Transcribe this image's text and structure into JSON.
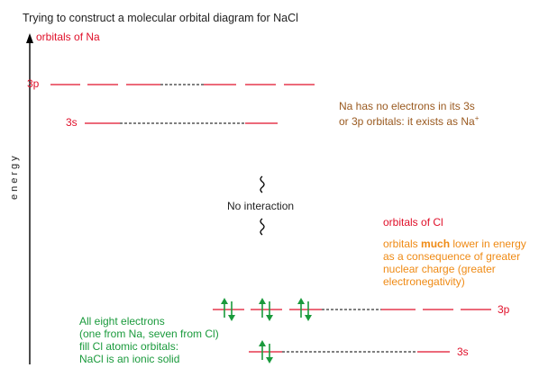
{
  "title": "Trying to construct a molecular orbital diagram for NaCl",
  "y_axis_label": "energy",
  "na": {
    "heading": "orbitals of Na",
    "level_3p": "3p",
    "level_3s": "3s",
    "note_line1": "Na has no electrons in its 3s",
    "note_line2": "or 3p orbitals: it exists as Na",
    "note_superscript": "+"
  },
  "interaction": {
    "label": "No interaction"
  },
  "cl": {
    "heading": "orbitals of Cl",
    "note_line1_pre": "orbitals ",
    "note_line1_bold": "much",
    "note_line1_post": " lower in energy",
    "note_line2": "as a consequence of greater",
    "note_line3": "nuclear charge (greater",
    "note_line4": "electronegativity)",
    "level_3p": "3p",
    "level_3s": "3s"
  },
  "summary": {
    "line1": "All eight electrons",
    "line2": "(one from Na, seven from Cl)",
    "line3": "fill Cl atomic orbitals:",
    "line4": "NaCl is an ionic solid"
  },
  "colors": {
    "level": "#e0102a",
    "label_red": "#e0102a",
    "na_note": "#9a5a20",
    "cl_note": "#ef8a14",
    "green": "#1a9a3c",
    "text": "#222222"
  }
}
